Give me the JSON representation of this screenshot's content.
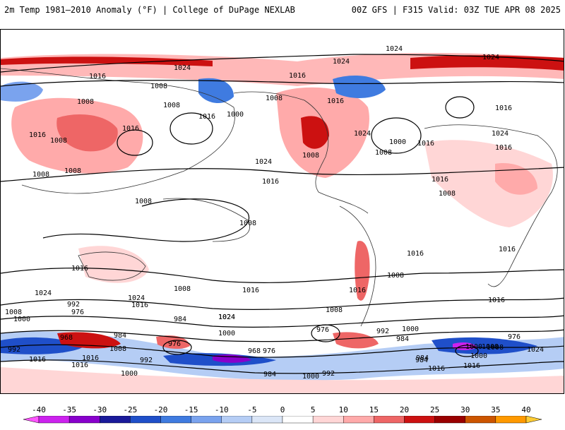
{
  "header": {
    "title_left": "2m Temp 1981–2010 Anomaly (°F) | College of DuPage NEXLAB",
    "title_right": "00Z GFS | F315 Valid: 03Z TUE APR 08 2025"
  },
  "colorbar": {
    "tick_labels": [
      "-40",
      "-35",
      "-30",
      "-25",
      "-20",
      "-15",
      "-10",
      "-5",
      "0",
      "5",
      "10",
      "15",
      "20",
      "25",
      "30",
      "35",
      "40"
    ],
    "colors": [
      "#ff55ff",
      "#cc22ee",
      "#8800cc",
      "#1a1a9a",
      "#1f4fc9",
      "#3f7be0",
      "#7aa3ee",
      "#b5cdf5",
      "#dbe6f7",
      "#ffffff",
      "#ffd6d6",
      "#ffaaaa",
      "#ee6666",
      "#cc1111",
      "#990000",
      "#cc5500",
      "#ff9900",
      "#ffcc33"
    ]
  },
  "map": {
    "isobar_labels": [
      "1024",
      "1024",
      "1024",
      "1024",
      "1016",
      "1016",
      "1008",
      "1008",
      "1016",
      "1008",
      "1016",
      "1016",
      "1000",
      "1008",
      "1008",
      "1016",
      "1008",
      "1008",
      "1016",
      "1016",
      "1016",
      "1024",
      "1008",
      "1016",
      "1008",
      "1024",
      "1000",
      "1016",
      "1008",
      "1016",
      "1024",
      "1016",
      "1008",
      "1008",
      "1008",
      "1016",
      "1008",
      "1016",
      "1016",
      "1008",
      "1016",
      "1016",
      "1024",
      "1008",
      "1016",
      "1024",
      "1024",
      "1016",
      "992",
      "1008",
      "1000",
      "976",
      "984",
      "1024",
      "1000",
      "984",
      "976",
      "968",
      "984",
      "1008",
      "976",
      "992",
      "1000",
      "1016",
      "1000",
      "984",
      "968",
      "976",
      "992",
      "1008",
      "984",
      "976",
      "1024",
      "992",
      "1000",
      "1016",
      "984",
      "1000",
      "992",
      "1000",
      "1016"
    ]
  }
}
